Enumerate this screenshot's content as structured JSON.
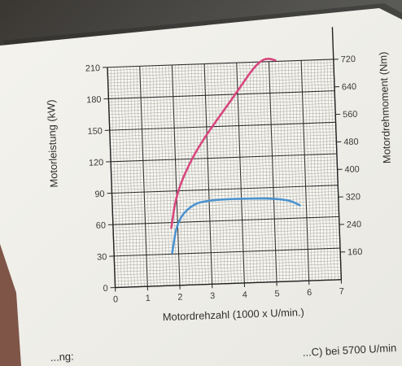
{
  "chart_data": {
    "type": "line",
    "xlabel": "Motordrehzahl (1000 x U/min.)",
    "ylabel_left": "Motorleistung (kW)",
    "ylabel_right": "Motordrehmoment (Nm)",
    "x_ticks": [
      "0",
      "1",
      "2",
      "3",
      "4",
      "5",
      "6",
      "7"
    ],
    "y_left_ticks": [
      "0",
      "30",
      "60",
      "90",
      "120",
      "150",
      "180",
      "210"
    ],
    "y_right_ticks": [
      "160",
      "240",
      "320",
      "400",
      "480",
      "560",
      "640",
      "720"
    ],
    "xlim": [
      0,
      7
    ],
    "ylim_left": [
      0,
      210
    ],
    "ylim_right": [
      80,
      720
    ],
    "grid": true,
    "series": [
      {
        "axis": "left",
        "color": "#d8457d",
        "x": [
          1.8,
          2.0,
          2.5,
          3.0,
          3.5,
          4.0,
          4.5,
          4.8,
          5.0,
          5.2
        ],
        "values": [
          55,
          88,
          120,
          143,
          163,
          183,
          204,
          212,
          213,
          211
        ]
      },
      {
        "axis": "right",
        "color": "#4a93cf",
        "x": [
          1.8,
          2.0,
          2.5,
          3.0,
          3.5,
          4.0,
          4.5,
          5.0,
          5.5,
          5.8
        ],
        "values": [
          175,
          270,
          315,
          323,
          325,
          325,
          324,
          322,
          315,
          300
        ]
      }
    ]
  },
  "footer": {
    "left_fragment": "...ng:",
    "right_fragment": "...C) bei 5700 U/min"
  }
}
